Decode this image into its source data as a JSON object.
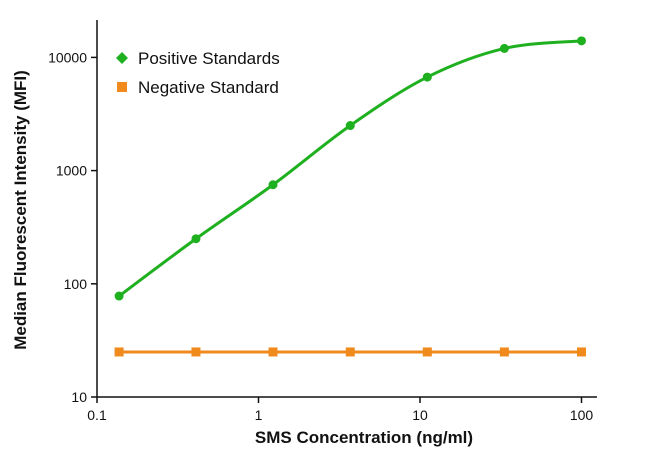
{
  "chart_data": {
    "type": "line",
    "title": "",
    "xlabel": "SMS Concentration (ng/ml)",
    "ylabel": "Median Fluorescent Intensity (MFI)",
    "x_scale": "log",
    "y_scale": "log",
    "xlim": [
      0.1,
      100
    ],
    "ylim": [
      10,
      20000
    ],
    "x_ticks": [
      0.1,
      1,
      10,
      100
    ],
    "x_tick_labels": [
      "0.1",
      "1",
      "10",
      "100"
    ],
    "y_ticks": [
      10,
      100,
      1000,
      10000
    ],
    "y_tick_labels": [
      "10",
      "100",
      "1000",
      "10000"
    ],
    "grid": false,
    "legend_position": "top-left",
    "series": [
      {
        "name": "Positive Standards",
        "color": "#1fb01f",
        "marker": "circle",
        "x": [
          0.137,
          0.41,
          1.23,
          3.7,
          11.1,
          33.3,
          100
        ],
        "y": [
          78,
          250,
          750,
          2500,
          6700,
          12000,
          14000
        ],
        "fit": "smooth-curve"
      },
      {
        "name": "Negative Standard",
        "color": "#f08a1c",
        "marker": "square",
        "x": [
          0.137,
          0.41,
          1.23,
          3.7,
          11.1,
          33.3,
          100
        ],
        "y": [
          25,
          25,
          25,
          25,
          25,
          25,
          25
        ],
        "fit": "line"
      }
    ]
  }
}
